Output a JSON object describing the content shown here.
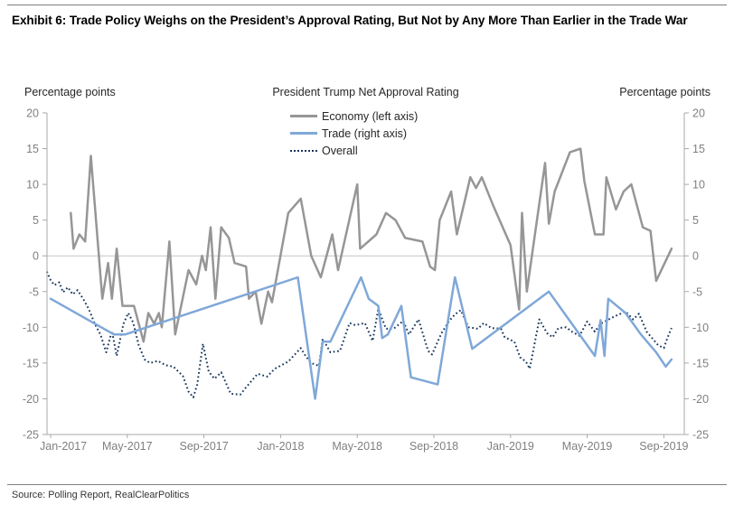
{
  "header": {
    "exhibit_title": "Exhibit 6: Trade Policy Weighs on the President’s Approval Rating, But Not by Any More Than Earlier in the Trade War"
  },
  "footer": {
    "source": "Source: Polling Report, RealClearPolitics"
  },
  "chart_data": {
    "type": "line",
    "title": "President Trump Net Approval Rating",
    "left_axis_label": "Percentage points",
    "right_axis_label": "Percentage points",
    "x_unit": "months since Jan-2017",
    "x_tick_labels": [
      "Jan-2017",
      "May-2017",
      "Sep-2017",
      "Jan-2018",
      "May-2018",
      "Sep-2018",
      "Jan-2019",
      "May-2019",
      "Sep-2019"
    ],
    "x_tick_months": [
      0,
      4,
      8,
      12,
      16,
      20,
      24,
      28,
      32
    ],
    "ylim": [
      -25,
      20
    ],
    "ytick_step": 5,
    "grid": "zero-line-only",
    "legend_position": "top-center",
    "axis_text_color": "#7f7f7f",
    "zero_line_color": "#c4c4c4",
    "axis_line_color": "#a8a8a8",
    "series": [
      {
        "name": "Economy (left axis)",
        "axis": "left",
        "color": "#969696",
        "style": "solid",
        "points": [
          [
            1.05,
            6
          ],
          [
            1.2,
            1
          ],
          [
            1.5,
            3
          ],
          [
            1.8,
            2
          ],
          [
            2.1,
            14
          ],
          [
            2.7,
            -6
          ],
          [
            3.0,
            -1
          ],
          [
            3.2,
            -6
          ],
          [
            3.45,
            1
          ],
          [
            3.75,
            -7
          ],
          [
            4.35,
            -7
          ],
          [
            4.85,
            -12
          ],
          [
            5.1,
            -8
          ],
          [
            5.4,
            -9.5
          ],
          [
            5.65,
            -8
          ],
          [
            5.8,
            -10
          ],
          [
            6.2,
            2
          ],
          [
            6.5,
            -11
          ],
          [
            7.2,
            -2
          ],
          [
            7.6,
            -4
          ],
          [
            7.9,
            0
          ],
          [
            8.1,
            -2
          ],
          [
            8.35,
            4
          ],
          [
            8.6,
            -6
          ],
          [
            8.9,
            4
          ],
          [
            9.3,
            2.5
          ],
          [
            9.6,
            -1
          ],
          [
            10.2,
            -1.5
          ],
          [
            10.35,
            -6
          ],
          [
            10.7,
            -5
          ],
          [
            11.0,
            -9.5
          ],
          [
            11.35,
            -5
          ],
          [
            11.55,
            -6.5
          ],
          [
            12.4,
            6
          ],
          [
            13.05,
            8
          ],
          [
            13.6,
            0
          ],
          [
            14.1,
            -3
          ],
          [
            14.7,
            3
          ],
          [
            15.0,
            -2
          ],
          [
            16.0,
            10
          ],
          [
            16.15,
            1
          ],
          [
            17.0,
            3
          ],
          [
            17.5,
            6
          ],
          [
            18.0,
            5
          ],
          [
            18.5,
            2.5
          ],
          [
            19.4,
            2
          ],
          [
            19.8,
            -1.5
          ],
          [
            20.05,
            -2
          ],
          [
            20.3,
            5
          ],
          [
            20.9,
            9
          ],
          [
            21.2,
            3
          ],
          [
            21.9,
            11
          ],
          [
            22.2,
            9.5
          ],
          [
            22.5,
            11
          ],
          [
            23.1,
            7
          ],
          [
            24.0,
            1.5
          ],
          [
            24.45,
            -7.5
          ],
          [
            24.6,
            6
          ],
          [
            24.85,
            -5
          ],
          [
            25.8,
            13
          ],
          [
            26.0,
            4.5
          ],
          [
            26.3,
            9
          ],
          [
            27.1,
            14.5
          ],
          [
            27.65,
            15
          ],
          [
            27.85,
            10.5
          ],
          [
            28.4,
            3
          ],
          [
            28.85,
            3
          ],
          [
            29.0,
            11
          ],
          [
            29.5,
            6.5
          ],
          [
            29.9,
            9
          ],
          [
            30.3,
            10
          ],
          [
            30.9,
            4
          ],
          [
            31.3,
            3.5
          ],
          [
            31.6,
            -3.5
          ],
          [
            32.4,
            1
          ]
        ]
      },
      {
        "name": "Trade (right axis)",
        "axis": "right",
        "color": "#7FA8D8",
        "style": "solid",
        "points": [
          [
            0,
            -6
          ],
          [
            3.3,
            -11
          ],
          [
            3.9,
            -11
          ],
          [
            12.9,
            -3
          ],
          [
            13.8,
            -20
          ],
          [
            14.2,
            -12
          ],
          [
            14.6,
            -12
          ],
          [
            16.2,
            -3
          ],
          [
            16.6,
            -6
          ],
          [
            17.1,
            -7
          ],
          [
            17.3,
            -11.5
          ],
          [
            17.6,
            -11
          ],
          [
            18.3,
            -7
          ],
          [
            18.8,
            -17
          ],
          [
            20.2,
            -18
          ],
          [
            21.1,
            -3
          ],
          [
            22.0,
            -13
          ],
          [
            26.0,
            -5
          ],
          [
            28.4,
            -14
          ],
          [
            28.7,
            -9
          ],
          [
            28.9,
            -14
          ],
          [
            29.1,
            -6
          ],
          [
            30.0,
            -8
          ],
          [
            30.8,
            -11
          ],
          [
            31.6,
            -13.5
          ],
          [
            32.1,
            -15.5
          ],
          [
            32.4,
            -14.5
          ]
        ]
      },
      {
        "name": "Overall",
        "axis": "right",
        "color": "#17365D",
        "style": "dotted",
        "points": [
          [
            -0.2,
            -2.2
          ],
          [
            0,
            -3.4
          ],
          [
            0.2,
            -4.1
          ],
          [
            0.45,
            -3.7
          ],
          [
            0.65,
            -5.1
          ],
          [
            0.9,
            -4.4
          ],
          [
            1.15,
            -5.4
          ],
          [
            1.4,
            -4.8
          ],
          [
            1.7,
            -6
          ],
          [
            2.0,
            -7.5
          ],
          [
            2.3,
            -9.5
          ],
          [
            2.6,
            -11
          ],
          [
            2.9,
            -13.5
          ],
          [
            3.2,
            -10.5
          ],
          [
            3.45,
            -14
          ],
          [
            3.8,
            -9.5
          ],
          [
            4.05,
            -8
          ],
          [
            4.3,
            -9.3
          ],
          [
            4.6,
            -12.5
          ],
          [
            4.9,
            -14.5
          ],
          [
            5.2,
            -15
          ],
          [
            5.6,
            -14.7
          ],
          [
            6.0,
            -15.3
          ],
          [
            6.4,
            -15.5
          ],
          [
            6.9,
            -16.8
          ],
          [
            7.2,
            -19
          ],
          [
            7.45,
            -19.8
          ],
          [
            7.65,
            -18
          ],
          [
            7.95,
            -12.3
          ],
          [
            8.25,
            -16.2
          ],
          [
            8.55,
            -17.2
          ],
          [
            8.9,
            -16.3
          ],
          [
            9.4,
            -19.3
          ],
          [
            9.9,
            -19.4
          ],
          [
            10.2,
            -18.4
          ],
          [
            10.8,
            -16.5
          ],
          [
            11.3,
            -16.9
          ],
          [
            11.7,
            -15.8
          ],
          [
            12.4,
            -14.8
          ],
          [
            13.05,
            -12.9
          ],
          [
            13.3,
            -14
          ],
          [
            13.6,
            -15
          ],
          [
            14.0,
            -15.4
          ],
          [
            14.2,
            -11.6
          ],
          [
            14.6,
            -13.5
          ],
          [
            15.1,
            -13.3
          ],
          [
            15.6,
            -9.4
          ],
          [
            15.9,
            -9.7
          ],
          [
            16.4,
            -9.4
          ],
          [
            16.8,
            -11.9
          ],
          [
            17.1,
            -7.4
          ],
          [
            17.5,
            -10.2
          ],
          [
            17.9,
            -10.2
          ],
          [
            18.4,
            -9.1
          ],
          [
            18.7,
            -11
          ],
          [
            19.2,
            -8.9
          ],
          [
            19.7,
            -13.3
          ],
          [
            19.9,
            -13.8
          ],
          [
            20.4,
            -10.8
          ],
          [
            20.8,
            -9.1
          ],
          [
            21.1,
            -8.2
          ],
          [
            21.4,
            -7.6
          ],
          [
            21.8,
            -10
          ],
          [
            22.3,
            -10.2
          ],
          [
            22.6,
            -9.4
          ],
          [
            23.0,
            -10.1
          ],
          [
            23.5,
            -10.2
          ],
          [
            23.7,
            -11.4
          ],
          [
            24.2,
            -12
          ],
          [
            24.5,
            -14.2
          ],
          [
            24.8,
            -14.8
          ],
          [
            25.0,
            -15.8
          ],
          [
            25.5,
            -8.9
          ],
          [
            25.9,
            -10.8
          ],
          [
            26.2,
            -11.4
          ],
          [
            26.5,
            -10.1
          ],
          [
            26.9,
            -10
          ],
          [
            27.2,
            -10.6
          ],
          [
            27.6,
            -11.2
          ],
          [
            28.0,
            -9.2
          ],
          [
            28.4,
            -10.6
          ],
          [
            28.7,
            -9.5
          ],
          [
            29.4,
            -8.5
          ],
          [
            30.0,
            -7.8
          ],
          [
            30.4,
            -8.9
          ],
          [
            30.7,
            -8.1
          ],
          [
            31.1,
            -10.6
          ],
          [
            31.7,
            -12.5
          ],
          [
            32.0,
            -12.9
          ],
          [
            32.2,
            -11.4
          ],
          [
            32.4,
            -10.1
          ]
        ]
      }
    ]
  }
}
